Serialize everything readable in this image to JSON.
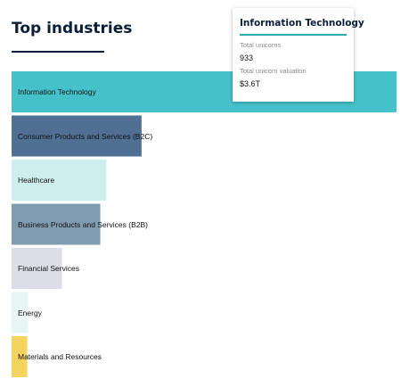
{
  "chart_data": {
    "type": "bar",
    "orientation": "horizontal",
    "title": "Top industries",
    "categories": [
      "Information Technology",
      "Consumer Products and Services (B2C)",
      "Healthcare",
      "Business Products and Services (B2B)",
      "Financial Services",
      "Energy",
      "Materials and Resources"
    ],
    "values": [
      933,
      315,
      230,
      215,
      122,
      40,
      38
    ],
    "colors": [
      "#45c2c9",
      "#4f7092",
      "#cdeeed",
      "#7f9cb1",
      "#dcdde6",
      "#e7f6f4",
      "#f4d35e"
    ],
    "grid": false,
    "legend": false
  },
  "tooltip": {
    "title": "Information Technology",
    "fields": [
      {
        "label": "Total unicorns",
        "value": "933"
      },
      {
        "label": "Total unicorn valuation",
        "value": "$3.6T"
      }
    ]
  }
}
